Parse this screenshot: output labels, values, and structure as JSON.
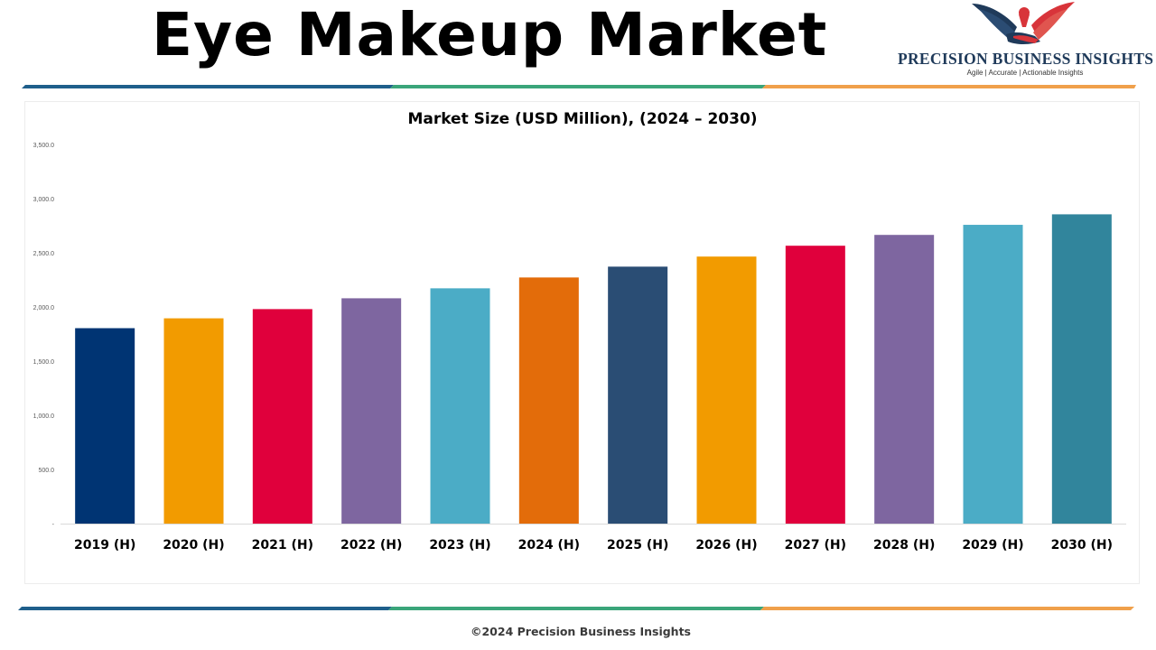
{
  "page": {
    "title": "Eye Makeup Market",
    "footer": "©2024 Precision Business Insights"
  },
  "logo": {
    "name": "PRECISION BUSINESS INSIGHTS",
    "tagline": "Agile | Accurate | Actionable Insights",
    "icon": "eagle-handshake-icon"
  },
  "colors": {
    "stripe": [
      "#1f5f8b",
      "#3aa57a",
      "#f0a04b"
    ],
    "brand_navy": "#1f3a5a",
    "brand_red": "#d8343a"
  },
  "chart_data": {
    "type": "bar",
    "title": "Market Size (USD Million), (2024 – 2030)",
    "xlabel": "",
    "ylabel": "",
    "categories": [
      "2019 (H)",
      "2020 (H)",
      "2021 (H)",
      "2022 (H)",
      "2023 (H)",
      "2024 (H)",
      "2025 (H)",
      "2026 (H)",
      "2027 (H)",
      "2028 (H)",
      "2029 (H)",
      "2030 (H)"
    ],
    "values": [
      1804,
      1895,
      1980,
      2080,
      2172,
      2272,
      2372,
      2465,
      2565,
      2665,
      2758,
      2855
    ],
    "bar_colors": [
      "#003473",
      "#f29b00",
      "#e0003c",
      "#7e66a0",
      "#4bacc6",
      "#e36c0a",
      "#2a4d74",
      "#f29b00",
      "#e0003c",
      "#7e66a0",
      "#4bacc6",
      "#31859c"
    ],
    "ylim": [
      0,
      3500
    ],
    "yticks": [
      "-",
      "500.0",
      "1,000.0",
      "1,500.0",
      "2,000.0",
      "2,500.0",
      "3,000.0",
      "3,500.0"
    ],
    "grid": false,
    "legend": "none"
  }
}
